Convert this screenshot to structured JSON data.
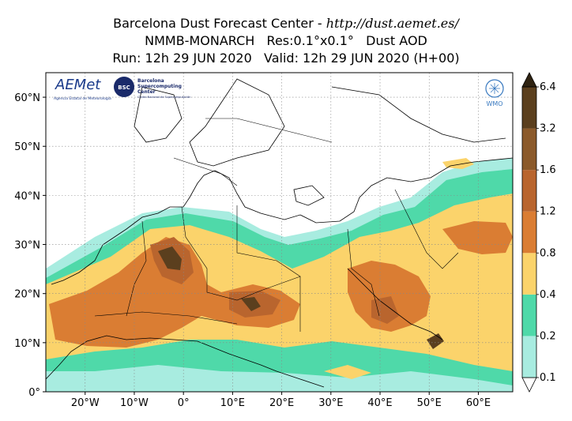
{
  "header": {
    "title_prefix": "Barcelona Dust Forecast Center - ",
    "title_url": "http://dust.aemet.es/",
    "model_line": "NMMB-MONARCH   Res:0.1°x0.1°   Dust AOD",
    "run_line": "Run: 12h 29 JUN 2020   Valid: 12h 29 JUN 2020 (H+00)"
  },
  "logos": {
    "aemet_name": "AEMet",
    "aemet_sub": "Agencia Estatal de Meteorología",
    "bsc_badge": "BSC",
    "bsc_name_1": "Barcelona",
    "bsc_name_2": "Supercomputing",
    "bsc_name_3": "Center",
    "bsc_sub": "Centro Nacional de Supercomputación",
    "wmo_name": "WMO"
  },
  "axes": {
    "x_ticks": [
      {
        "value": -20,
        "label": "20°W"
      },
      {
        "value": -10,
        "label": "10°W"
      },
      {
        "value": 0,
        "label": "0°"
      },
      {
        "value": 10,
        "label": "10°E"
      },
      {
        "value": 20,
        "label": "20°E"
      },
      {
        "value": 30,
        "label": "30°E"
      },
      {
        "value": 40,
        "label": "40°E"
      },
      {
        "value": 50,
        "label": "50°E"
      },
      {
        "value": 60,
        "label": "60°E"
      }
    ],
    "y_ticks": [
      {
        "value": 0,
        "label": "0°"
      },
      {
        "value": 10,
        "label": "10°N"
      },
      {
        "value": 20,
        "label": "20°N"
      },
      {
        "value": 30,
        "label": "30°N"
      },
      {
        "value": 40,
        "label": "40°N"
      },
      {
        "value": 50,
        "label": "50°N"
      },
      {
        "value": 60,
        "label": "60°N"
      }
    ],
    "lon_range": [
      -28,
      67
    ],
    "lat_range": [
      0,
      65
    ],
    "grid": true
  },
  "colorbar": {
    "levels": [
      "0.1",
      "0.2",
      "0.4",
      "0.8",
      "1.2",
      "1.6",
      "3.2",
      "6.4"
    ],
    "colors": [
      "#a8ece0",
      "#4fd9a9",
      "#fbd36b",
      "#da7d33",
      "#b9652e",
      "#8b5a2b",
      "#5b3f1e",
      "#2f2312"
    ],
    "extend": "both"
  },
  "colors": {
    "ocean": "#ffffff",
    "border": "#000000",
    "grid": "#888888"
  }
}
